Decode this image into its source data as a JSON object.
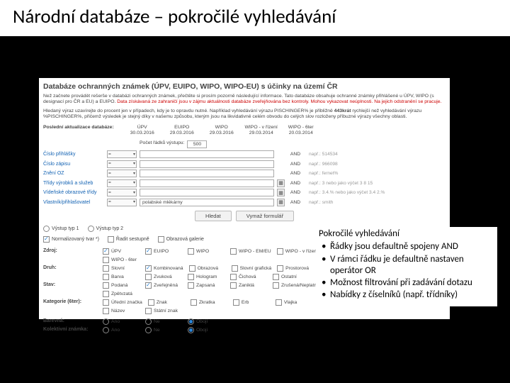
{
  "slide": {
    "title": "Národní databáze – pokročilé vyhledávání"
  },
  "panel": {
    "heading": "Databáze ochranných známek (ÚPV, EUIPO, WIPO, WIPO-EU) s účinky na území ČR",
    "intro1_a": "Než začnete provádět rešerše v databázi ochranných známek, přečtěte si prosím pozorně následující informace. Tato databáze obsahuje ochranné známky přihlášené u ÚPV, WIPO (s designací pro ČR a EU) a EUIPO. ",
    "intro1_red": "Data získávaná ze zahraničí jsou v zájmu aktuálnosti databáze zveřejňována bez kontroly. Mohou vykazovat neúplnosti. Na jejich odstranění se pracuje.",
    "intro2_a": "Hledaný výraz uzavírejte do procent jen v případech, kdy je to opravdu nutné. Například vyhledávání výrazu PISCHINGER% je přibližně ",
    "intro2_b": "443krát",
    "intro2_c": " rychlejší než vyhledávání výrazu %PISCHINGER%, přičemž výsledek je stejný díky v našemu způsobu, kterým jsou na likvidativně celém obvodu do celých slov rozloženy příbuzné výrazy všechny oblasti.",
    "update_label": "Poslední aktualizace databáze:",
    "update_cols": [
      {
        "h": "ÚPV",
        "d": "30.03.2016"
      },
      {
        "h": "EUIPO",
        "d": "29.03.2016"
      },
      {
        "h": "WIPO",
        "d": "29.03.2016"
      },
      {
        "h": "WIPO - v řízení",
        "d": "29.03.2014"
      },
      {
        "h": "WIPO - 6ter",
        "d": "20.03.2014"
      }
    ],
    "count_label": "Počet řádků výstupu:",
    "count_value": "500",
    "criteria": [
      {
        "label": "Číslo přihlášky",
        "op": "= ▾",
        "hint": "např.: 514534",
        "picker": false
      },
      {
        "label": "Číslo zápisu",
        "op": "= ▾",
        "hint": "např.: 966098",
        "picker": false
      },
      {
        "label": "Znění OZ",
        "op": "= ▾",
        "hint": "např.: fernet%",
        "picker": false
      },
      {
        "label": "Třídy výrobků a služeb",
        "op": "= ▾",
        "hint": "např.: 3  nebo jako výčet  3 8 15",
        "picker": true
      },
      {
        "label": "Vídeňské obrazové třídy",
        "op": "= ▾",
        "hint": "např.: 3.4.%  nebo jako výčet  3.4  2.%",
        "picker": true
      },
      {
        "label": "Vlastník/přihlašovatel",
        "op": "= ▾",
        "hint": "např.: smith",
        "picker": true
      }
    ],
    "value_entered": "polabské mlékárny",
    "btn_search": "Hledat",
    "btn_clear": "Vymaž formulář",
    "tabs": {
      "v1": "Výstup typ 1",
      "v2": "Výstup typ 2",
      "norm": "Normalizovaný tvar *)",
      "sort": "Řadit sestupně",
      "gallery": "Obrazová galerie"
    },
    "filters": [
      {
        "label": "Zdroj:",
        "opts_on": [
          0,
          1
        ],
        "opts": [
          "ÚPV",
          "EUIPO",
          "WIPO",
          "WIPO - EM/EU",
          "WIPO - v řízení"
        ]
      },
      {
        "label": "",
        "opts_on": [],
        "opts": [
          "WIPO - 6ter"
        ]
      },
      {
        "label": "Druh:",
        "opts_on": [
          1
        ],
        "opts": [
          "Slovní",
          "Kombinovaná",
          "Obrazová",
          "Slovní grafická",
          "Prostorová"
        ]
      },
      {
        "label": "",
        "opts_on": [],
        "opts": [
          "Barva",
          "Zvuková",
          "Hologram",
          "Čichová",
          "Ostatní"
        ]
      },
      {
        "label": "Stav:",
        "opts_on": [
          1
        ],
        "opts": [
          "Podaná",
          "Zveřejněná",
          "Zapsaná",
          "Zaniklá",
          "Zrušená/Neplatná"
        ]
      },
      {
        "label": "",
        "opts_on": [],
        "opts": [
          "Zpětvzatá"
        ]
      },
      {
        "label": "Kategorie (6ter):",
        "opts_on": [],
        "opts": [
          "Úřední značka",
          "Znak",
          "Zkratka",
          "Erb",
          "Vlajka"
        ]
      },
      {
        "label": "",
        "opts_on": [],
        "opts": [
          "Název",
          "Státní znak"
        ]
      }
    ],
    "bottom": [
      {
        "label": "Barevná:",
        "opts": [
          "Ano",
          "Ne",
          "Obojí"
        ],
        "sel": 2
      },
      {
        "label": "Kolektivní známka:",
        "opts": [
          "Ano",
          "Ne",
          "Obojí"
        ],
        "sel": 2
      }
    ]
  },
  "callout": {
    "title": "Pokročilé vyhledávání",
    "items": [
      "Řádky jsou defaultně spojeny AND",
      "V rámci řádku je defaultně nastaven operátor OR",
      "Možnost filtrování při zadávání dotazu",
      "Nabídky z číselníků (např. třídníky)"
    ]
  }
}
